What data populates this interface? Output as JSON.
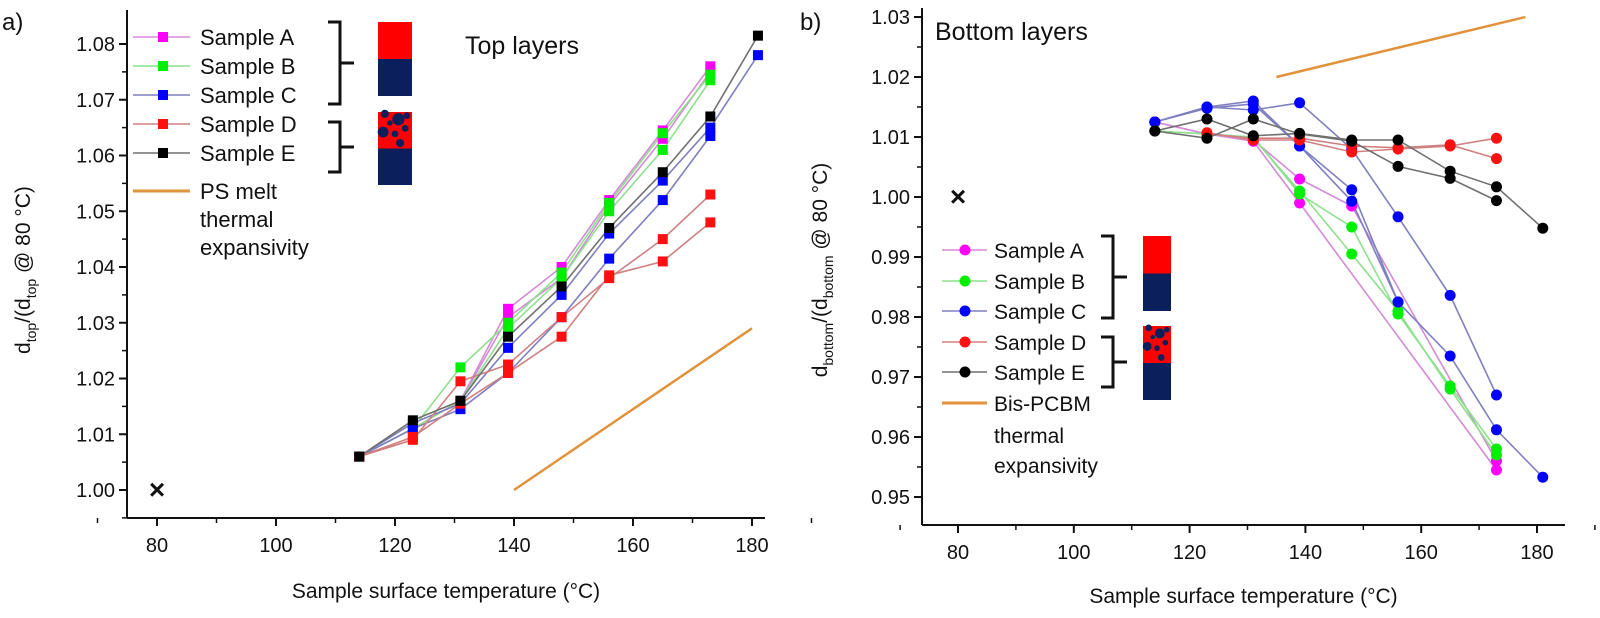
{
  "colors": {
    "A_marker": "#ff00ff",
    "A_line": "#d58ad5",
    "B_marker": "#00ee00",
    "B_line": "#8ee08e",
    "C_marker": "#0000ff",
    "C_line": "#7f7fc0",
    "D_marker": "#ff1010",
    "D_line": "#d08080",
    "E_marker": "#000000",
    "E_line": "#707070",
    "orange": "#e2923a",
    "red_block": "#ff0000",
    "navy_block": "#0a1f5c"
  },
  "chart_data": [
    {
      "type": "line",
      "panel_label": "a)",
      "title": "Top layers",
      "xlabel": "Sample surface temperature (°C)",
      "xlabel_parts": [
        "Sample surface temperature (",
        "o",
        "C)"
      ],
      "ylabel": "dtop/(dtop @ 80 °C)",
      "ylabel_parts": [
        "d",
        "top",
        "/(d",
        "top",
        " @ 80 °C)"
      ],
      "xlim": [
        75,
        185
      ],
      "ylim": [
        0.9965,
        1.0845
      ],
      "xticks": [
        "80",
        "100",
        "120",
        "140",
        "160",
        "180"
      ],
      "yticks": [
        "1.00",
        "1.01",
        "1.02",
        "1.03",
        "1.04",
        "1.05",
        "1.06",
        "1.07",
        "1.08"
      ],
      "marker": "square",
      "legend": [
        "Sample A",
        "Sample B",
        "Sample C",
        "Sample D",
        "Sample E"
      ],
      "legend_line": [
        "PS melt",
        "thermal",
        "expansivity"
      ],
      "reference_point": {
        "x": 80,
        "y": 1.0,
        "symbol": "×"
      },
      "reference_line": {
        "name": "PS melt thermal expansivity",
        "points": [
          [
            140,
            1.0
          ],
          [
            180,
            1.029
          ]
        ]
      },
      "series": [
        {
          "name": "Sample A",
          "key": "A",
          "points": [
            [
              114,
              1.006
            ],
            [
              123,
              1.011
            ],
            [
              131,
              1.016
            ],
            [
              139,
              1.0325
            ],
            [
              148,
              1.04
            ],
            [
              156,
              1.052
            ],
            [
              165,
              1.0645
            ],
            [
              173,
              1.076
            ]
          ]
        },
        {
          "name": "Sample A",
          "key": "A",
          "points": [
            [
              114,
              1.006
            ],
            [
              123,
              1.011
            ],
            [
              131,
              1.016
            ],
            [
              139,
              1.031
            ],
            [
              148,
              1.038
            ],
            [
              156,
              1.051
            ],
            [
              165,
              1.063
            ],
            [
              173,
              1.075
            ]
          ]
        },
        {
          "name": "Sample B",
          "key": "B",
          "points": [
            [
              114,
              1.006
            ],
            [
              123,
              1.011
            ],
            [
              131,
              1.022
            ],
            [
              139,
              1.03
            ],
            [
              148,
              1.039
            ],
            [
              156,
              1.0515
            ],
            [
              165,
              1.064
            ],
            [
              173,
              1.0745
            ]
          ]
        },
        {
          "name": "Sample B",
          "key": "B",
          "points": [
            [
              114,
              1.006
            ],
            [
              123,
              1.011
            ],
            [
              131,
              1.016
            ],
            [
              139,
              1.029
            ],
            [
              148,
              1.038
            ],
            [
              156,
              1.05
            ],
            [
              165,
              1.061
            ],
            [
              173,
              1.0735
            ]
          ]
        },
        {
          "name": "Sample C",
          "key": "C",
          "points": [
            [
              114,
              1.006
            ],
            [
              123,
              1.012
            ],
            [
              131,
              1.0155
            ],
            [
              139,
              1.0255
            ],
            [
              148,
              1.035
            ],
            [
              156,
              1.046
            ],
            [
              165,
              1.0555
            ],
            [
              173,
              1.065
            ],
            [
              181,
              1.078
            ]
          ]
        },
        {
          "name": "Sample C",
          "key": "C",
          "points": [
            [
              114,
              1.006
            ],
            [
              123,
              1.011
            ],
            [
              131,
              1.0145
            ],
            [
              139,
              1.021
            ],
            [
              148,
              1.031
            ],
            [
              156,
              1.0415
            ],
            [
              165,
              1.052
            ],
            [
              173,
              1.0635
            ]
          ]
        },
        {
          "name": "Sample D",
          "key": "D",
          "points": [
            [
              114,
              1.006
            ],
            [
              123,
              1.009
            ],
            [
              131,
              1.0195
            ],
            [
              139,
              1.0225
            ],
            [
              148,
              1.031
            ],
            [
              156,
              1.038
            ],
            [
              165,
              1.045
            ],
            [
              173,
              1.053
            ]
          ]
        },
        {
          "name": "Sample D",
          "key": "D",
          "points": [
            [
              114,
              1.006
            ],
            [
              123,
              1.0095
            ],
            [
              131,
              1.0155
            ],
            [
              139,
              1.021
            ],
            [
              148,
              1.0275
            ],
            [
              156,
              1.0385
            ],
            [
              165,
              1.041
            ],
            [
              173,
              1.048
            ]
          ]
        },
        {
          "name": "Sample E",
          "key": "E",
          "points": [
            [
              114,
              1.006
            ],
            [
              123,
              1.0125
            ],
            [
              131,
              1.016
            ],
            [
              139,
              1.0275
            ],
            [
              148,
              1.0365
            ],
            [
              156,
              1.047
            ],
            [
              165,
              1.057
            ],
            [
              173,
              1.067
            ],
            [
              181,
              1.0815
            ]
          ]
        }
      ]
    },
    {
      "type": "line",
      "panel_label": "b)",
      "title": "Bottom layers",
      "xlabel": "Sample surface temperature (°C)",
      "xlabel_parts": [
        "Sample surface temperature (",
        "o",
        "C)"
      ],
      "ylabel": "dbottom/(dbottom @ 80 °C)",
      "ylabel_parts": [
        "d",
        "bottom",
        "/(d",
        "bottom",
        " @ 80 °C)"
      ],
      "xlim": [
        74,
        185
      ],
      "ylim": [
        0.9445,
        1.0305
      ],
      "xticks": [
        "80",
        "100",
        "120",
        "140",
        "160",
        "180"
      ],
      "yticks": [
        "0.95",
        "0.96",
        "0.97",
        "0.98",
        "0.99",
        "1.00",
        "1.01",
        "1.02",
        "1.03"
      ],
      "marker": "circle",
      "legend": [
        "Sample A",
        "Sample B",
        "Sample C",
        "Sample D",
        "Sample E"
      ],
      "legend_line": [
        "Bis-PCBM",
        "thermal",
        "expansivity"
      ],
      "reference_point": {
        "x": 80,
        "y": 1.0,
        "symbol": "×"
      },
      "reference_line": {
        "name": "Bis-PCBM thermal expansivity",
        "points": [
          [
            135,
            1.02
          ],
          [
            178,
            1.03
          ]
        ]
      },
      "series": [
        {
          "name": "Sample A",
          "key": "A",
          "points": [
            [
              114,
              1.0125
            ],
            [
              123,
              1.0105
            ],
            [
              131,
              1.0093
            ],
            [
              139,
              0.999
            ],
            [
              173,
              0.9545
            ]
          ]
        },
        {
          "name": "Sample A",
          "key": "A",
          "points": [
            [
              114,
              1.0125
            ],
            [
              123,
              1.0105
            ],
            [
              131,
              1.0095
            ],
            [
              139,
              1.003
            ],
            [
              148,
              0.9985
            ],
            [
              173,
              0.956
            ]
          ]
        },
        {
          "name": "Sample B",
          "key": "B",
          "points": [
            [
              114,
              1.011
            ],
            [
              123,
              1.0105
            ],
            [
              131,
              1.01
            ],
            [
              139,
              1.0005
            ],
            [
              148,
              0.995
            ],
            [
              156,
              0.9805
            ],
            [
              165,
              0.9685
            ],
            [
              173,
              0.958
            ]
          ]
        },
        {
          "name": "Sample B",
          "key": "B",
          "points": [
            [
              114,
              1.011
            ],
            [
              123,
              1.0105
            ],
            [
              131,
              1.0098
            ],
            [
              139,
              1.001
            ],
            [
              148,
              0.9905
            ],
            [
              156,
              0.981
            ],
            [
              165,
              0.968
            ],
            [
              173,
              0.957
            ]
          ]
        },
        {
          "name": "Sample C",
          "key": "C",
          "points": [
            [
              114,
              1.0125
            ],
            [
              123,
              1.015
            ],
            [
              131,
              1.016
            ],
            [
              139,
              1.0085
            ],
            [
              148,
              1.0012
            ],
            [
              156,
              0.9825
            ],
            [
              165,
              0.9735
            ],
            [
              173,
              0.9612
            ],
            [
              181,
              0.9533
            ]
          ]
        },
        {
          "name": "Sample C",
          "key": "C",
          "points": [
            [
              114,
              1.0125
            ],
            [
              123,
              1.015
            ],
            [
              131,
              1.0145
            ],
            [
              139,
              1.0157
            ],
            [
              148,
              1.008
            ],
            [
              156,
              0.9967
            ],
            [
              165,
              0.9836
            ],
            [
              173,
              0.967
            ]
          ]
        },
        {
          "name": "Sample C",
          "key": "C",
          "points": [
            [
              114,
              1.0125
            ],
            [
              123,
              1.0148
            ],
            [
              131,
              1.0155
            ],
            [
              139,
              1.0085
            ],
            [
              148,
              0.9993
            ],
            [
              156,
              0.9825
            ]
          ]
        },
        {
          "name": "Sample D",
          "key": "D",
          "points": [
            [
              123,
              1.0107
            ],
            [
              131,
              1.0095
            ],
            [
              139,
              1.0095
            ],
            [
              148,
              1.0075
            ],
            [
              156,
              1.008
            ],
            [
              165,
              1.0085
            ],
            [
              173,
              1.0098
            ]
          ]
        },
        {
          "name": "Sample D",
          "key": "D",
          "points": [
            [
              123,
              1.0105
            ],
            [
              131,
              1.0098
            ],
            [
              139,
              1.0098
            ],
            [
              148,
              1.0085
            ],
            [
              156,
              1.0082
            ],
            [
              165,
              1.0087
            ],
            [
              173,
              1.0064
            ]
          ]
        },
        {
          "name": "Sample E",
          "key": "E",
          "points": [
            [
              114,
              1.011
            ],
            [
              123,
              1.013
            ],
            [
              131,
              1.0102
            ],
            [
              139,
              1.0106
            ],
            [
              148,
              1.0095
            ],
            [
              156,
              1.0095
            ],
            [
              165,
              1.0043
            ],
            [
              173,
              1.0017
            ],
            [
              181,
              0.9948
            ]
          ]
        },
        {
          "name": "Sample E",
          "key": "E",
          "points": [
            [
              114,
              1.011
            ],
            [
              123,
              1.0098
            ],
            [
              131,
              1.013
            ],
            [
              139,
              1.0105
            ],
            [
              148,
              1.0093
            ],
            [
              156,
              1.0051
            ],
            [
              165,
              1.0031
            ],
            [
              173,
              0.9994
            ]
          ]
        }
      ]
    }
  ]
}
